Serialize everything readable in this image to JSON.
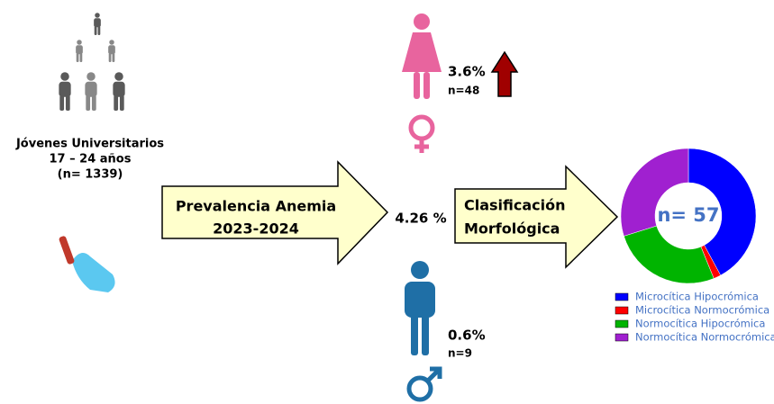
{
  "population": {
    "line1": "Jóvenes Universitarios",
    "line2": "17 – 24 años",
    "line3": "(n= 1339)"
  },
  "prevalence_arrow": {
    "line1": "Prevalencia Anemia",
    "line2": "2023-2024"
  },
  "overall": "4.26 %",
  "female": {
    "percent": "3.6%",
    "count": "n=48"
  },
  "male": {
    "percent": "0.6%",
    "count": "n=9"
  },
  "classification_arrow": {
    "line1": "Clasificación",
    "line2": "Morfológica"
  },
  "chart_data": {
    "type": "pie",
    "donut": true,
    "center_label": "n= 57",
    "categories": [
      "Microcítica Hipocrómica",
      "Microcítica Normocrómica",
      "Normocítica Hipocrómica",
      "Normocítica Normocrómica"
    ],
    "values": [
      24,
      1,
      15,
      17
    ],
    "colors": [
      "#0000ff",
      "#ff0000",
      "#00b400",
      "#a020d0"
    ],
    "legend": "bottom-right"
  }
}
